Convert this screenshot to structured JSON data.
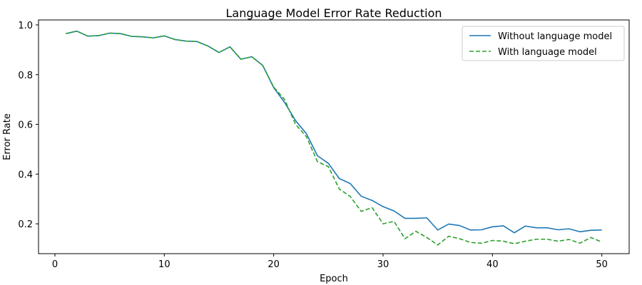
{
  "chart_data": {
    "type": "line",
    "title": "Language Model Error Rate Reduction",
    "xlabel": "Epoch",
    "ylabel": "Error Rate",
    "xlim": [
      -1.5,
      52.5
    ],
    "ylim": [
      0.08,
      1.02
    ],
    "xticks": [
      0,
      10,
      20,
      30,
      40,
      50
    ],
    "yticks": [
      0.2,
      0.4,
      0.6,
      0.8,
      1.0
    ],
    "ytick_labels": [
      "0.2",
      "0.4",
      "0.6",
      "0.8",
      "1.0"
    ],
    "grid": false,
    "legend_position": "top-right",
    "x": [
      1,
      2,
      3,
      4,
      5,
      6,
      7,
      8,
      9,
      10,
      11,
      12,
      13,
      14,
      15,
      16,
      17,
      18,
      19,
      20,
      21,
      22,
      23,
      24,
      25,
      26,
      27,
      28,
      29,
      30,
      31,
      32,
      33,
      34,
      35,
      36,
      37,
      38,
      39,
      40,
      41,
      42,
      43,
      44,
      45,
      46,
      47,
      48,
      49,
      50
    ],
    "series": [
      {
        "name": "Without language model",
        "color": "#1f77b4",
        "style": "solid",
        "values": [
          0.965,
          0.975,
          0.955,
          0.957,
          0.967,
          0.965,
          0.954,
          0.952,
          0.948,
          0.956,
          0.941,
          0.935,
          0.933,
          0.915,
          0.889,
          0.912,
          0.862,
          0.872,
          0.837,
          0.748,
          0.688,
          0.615,
          0.562,
          0.474,
          0.443,
          0.382,
          0.362,
          0.311,
          0.294,
          0.269,
          0.252,
          0.222,
          0.222,
          0.224,
          0.175,
          0.199,
          0.193,
          0.175,
          0.176,
          0.188,
          0.192,
          0.164,
          0.191,
          0.184,
          0.184,
          0.176,
          0.18,
          0.168,
          0.174,
          0.175
        ]
      },
      {
        "name": "With language model",
        "color": "#2ca02c",
        "style": "dashed",
        "values": [
          0.965,
          0.975,
          0.955,
          0.957,
          0.967,
          0.965,
          0.954,
          0.952,
          0.948,
          0.956,
          0.941,
          0.935,
          0.933,
          0.915,
          0.889,
          0.912,
          0.862,
          0.872,
          0.837,
          0.75,
          0.7,
          0.6,
          0.55,
          0.45,
          0.43,
          0.34,
          0.31,
          0.25,
          0.265,
          0.2,
          0.21,
          0.14,
          0.17,
          0.145,
          0.115,
          0.15,
          0.14,
          0.125,
          0.122,
          0.133,
          0.13,
          0.12,
          0.13,
          0.138,
          0.138,
          0.13,
          0.137,
          0.122,
          0.145,
          0.127
        ]
      }
    ]
  }
}
